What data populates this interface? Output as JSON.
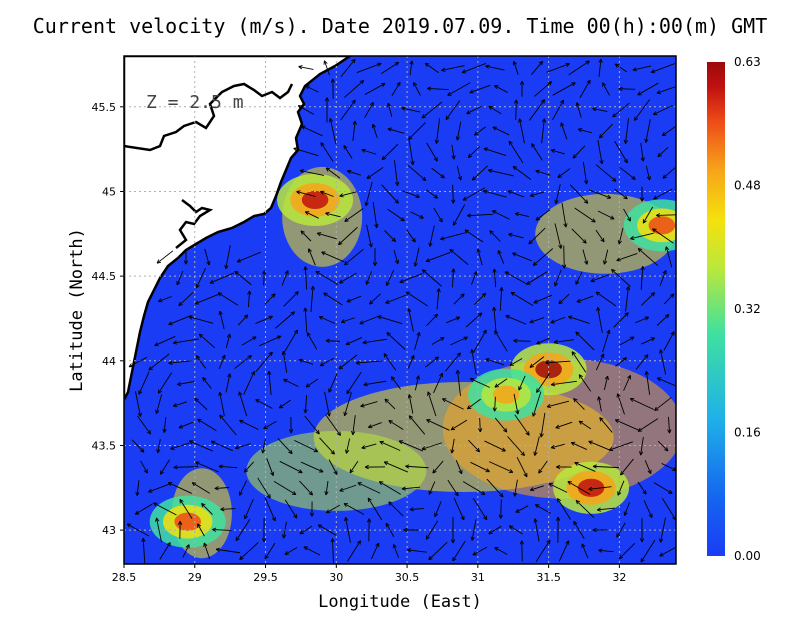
{
  "title": "Current velocity (m/s). Date 2019.07.09. Time 00(h):00(m) GMT",
  "depth_label": "Z = 2.5 m",
  "colors": {
    "land": "#ffffff",
    "coast": "#000000",
    "grid": "#b0b0b0",
    "arrow": "#000000",
    "colormap": [
      "#1a3cf5",
      "#1566f0",
      "#1fb2e8",
      "#3fe0a0",
      "#b8e83c",
      "#f5e10c",
      "#f7a51a",
      "#ef4b18",
      "#c01010",
      "#9c0a0a"
    ]
  },
  "chart_data": {
    "type": "heatmap",
    "title": "Current velocity (m/s). Date 2019.07.09. Time 00(h):00(m) GMT",
    "xlabel": "Longitude (East)",
    "ylabel": "Latitude (North)",
    "xlim": [
      28.5,
      32.4
    ],
    "ylim": [
      42.8,
      45.8
    ],
    "x_ticks": [
      "28.5",
      "29",
      "29.5",
      "30",
      "30.5",
      "31",
      "31.5",
      "32"
    ],
    "y_ticks": [
      "43",
      "43.5",
      "44",
      "44.5",
      "45",
      "45.5"
    ],
    "colorbar": {
      "label_unit": "m/s",
      "min": 0.0,
      "max": 0.63,
      "tick_labels": [
        "0.00",
        "0.16",
        "0.32",
        "0.48",
        "0.63"
      ]
    },
    "grid": true,
    "hotspots": [
      {
        "lon": 31.5,
        "lat": 43.95,
        "speed": 0.62
      },
      {
        "lon": 31.8,
        "lat": 43.25,
        "speed": 0.58
      },
      {
        "lon": 32.3,
        "lat": 44.8,
        "speed": 0.5
      },
      {
        "lon": 29.85,
        "lat": 44.95,
        "speed": 0.55
      },
      {
        "lon": 28.95,
        "lat": 43.05,
        "speed": 0.5
      },
      {
        "lon": 31.2,
        "lat": 43.8,
        "speed": 0.42
      }
    ]
  }
}
